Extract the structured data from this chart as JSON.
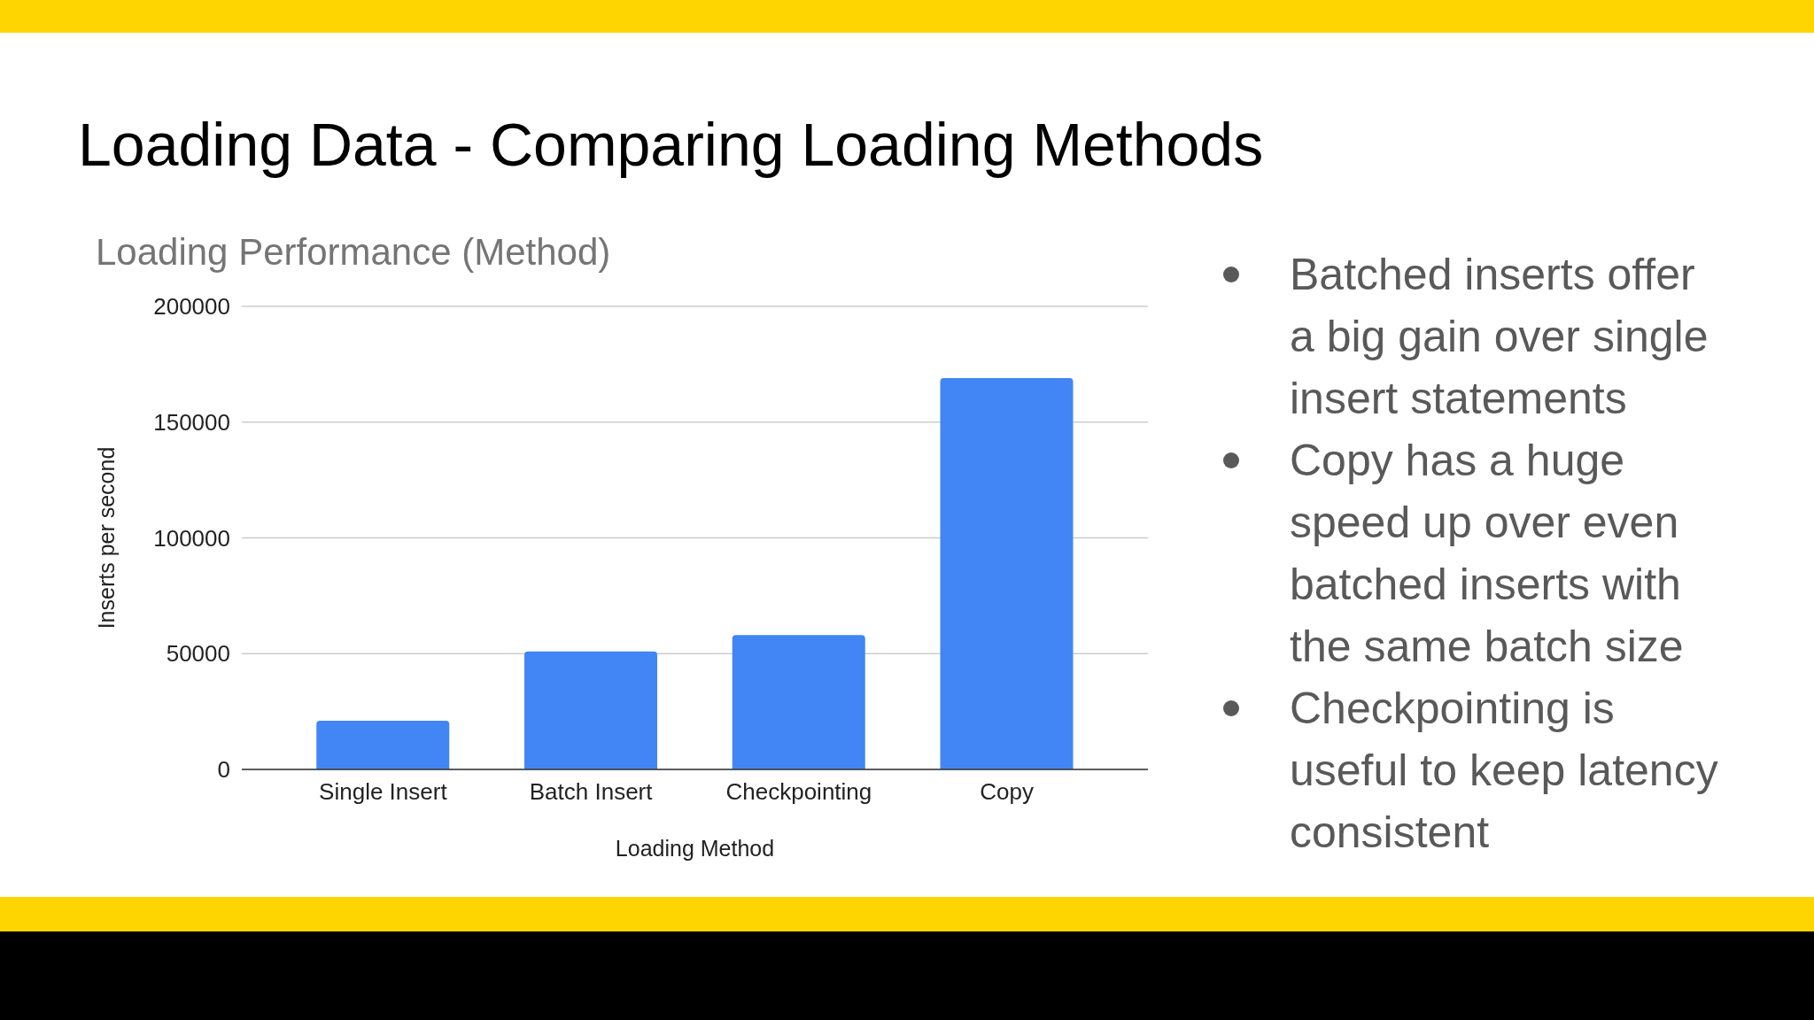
{
  "chart_data": {
    "type": "bar",
    "title": "Loading Data - Comparing Loading Methods",
    "subtitle": "Loading Performance (Method)",
    "xlabel": "Loading Method",
    "ylabel": "Inserts per second",
    "categories": [
      "Single Insert",
      "Batch Insert",
      "Checkpointing",
      "Copy"
    ],
    "values": [
      21000,
      51000,
      58000,
      169000
    ],
    "color": "#4285f4",
    "ylim": [
      0,
      200000
    ],
    "yticks": [
      0,
      50000,
      100000,
      150000,
      200000
    ],
    "grid": "y",
    "annotations": [
      "Batched inserts offer a big gain over single insert statements",
      "Copy has a huge speed up over even batched inserts with the same batch size",
      "Checkpointing is useful to keep latency consistent"
    ]
  }
}
